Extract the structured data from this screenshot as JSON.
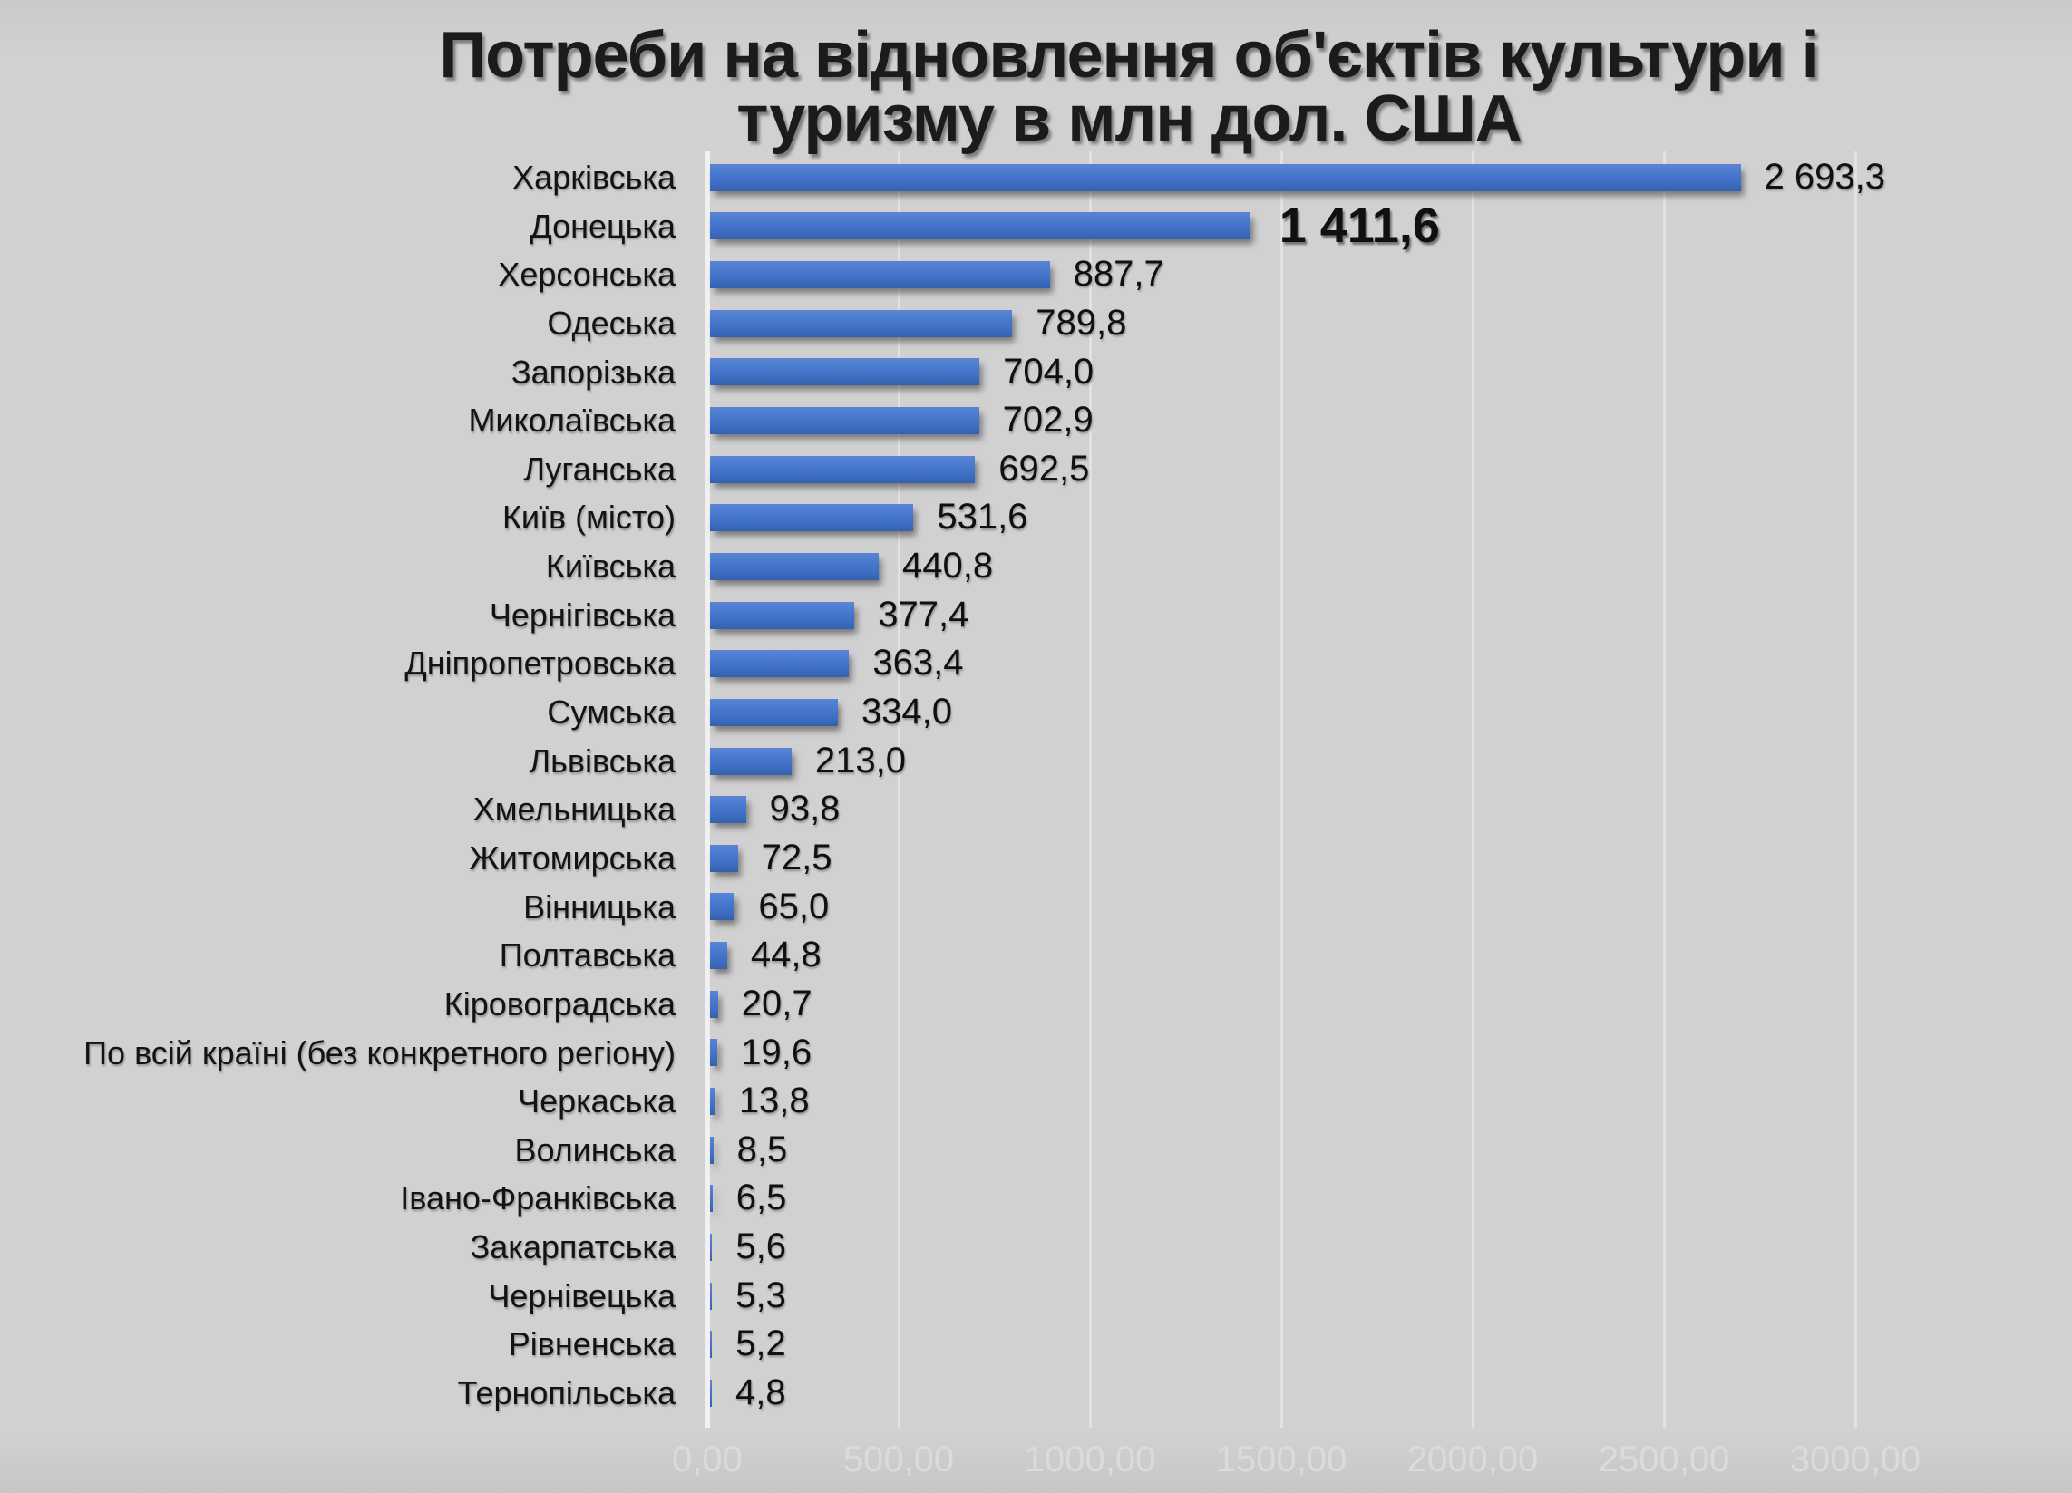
{
  "title": {
    "text": "Потреби на відновлення об'єктів культури і туризму в млн дол. США",
    "line1": "Потреби на відновлення об'єктів культури і",
    "line2": "туризму в млн дол. США"
  },
  "chart_data": {
    "type": "bar",
    "orientation": "horizontal",
    "title": "Потреби на відновлення об'єктів культури і туризму в млн дол. США",
    "xlabel": "",
    "ylabel": "",
    "xlim": [
      0,
      3000
    ],
    "grid": true,
    "legend": "none",
    "bar_color": "#4472c4",
    "background_color": "#d1d0d1",
    "tick_label_color": "#dcdbdc",
    "x_ticks": [
      {
        "value": 0,
        "label": "0,00"
      },
      {
        "value": 500,
        "label": "500,00"
      },
      {
        "value": 1000,
        "label": "1000,00"
      },
      {
        "value": 1500,
        "label": "1500,00"
      },
      {
        "value": 2000,
        "label": "2000,00"
      },
      {
        "value": 2500,
        "label": "2500,00"
      },
      {
        "value": 3000,
        "label": "3000,00"
      }
    ],
    "items": [
      {
        "label": "Харківська",
        "value": 2693.3,
        "value_label": "2 693,3",
        "emphasis": false
      },
      {
        "label": "Донецька",
        "value": 1411.6,
        "value_label": "1 411,6",
        "emphasis": true
      },
      {
        "label": "Херсонська",
        "value": 887.7,
        "value_label": "887,7",
        "emphasis": false
      },
      {
        "label": "Одеська",
        "value": 789.8,
        "value_label": "789,8",
        "emphasis": false
      },
      {
        "label": "Запорізька",
        "value": 704.0,
        "value_label": "704,0",
        "emphasis": false
      },
      {
        "label": "Миколаївська",
        "value": 702.9,
        "value_label": "702,9",
        "emphasis": false
      },
      {
        "label": "Луганська",
        "value": 692.5,
        "value_label": "692,5",
        "emphasis": false
      },
      {
        "label": "Київ (місто)",
        "value": 531.6,
        "value_label": "531,6",
        "emphasis": false
      },
      {
        "label": "Київська",
        "value": 440.8,
        "value_label": "440,8",
        "emphasis": false
      },
      {
        "label": "Чернігівська",
        "value": 377.4,
        "value_label": "377,4",
        "emphasis": false
      },
      {
        "label": "Дніпропетровська",
        "value": 363.4,
        "value_label": "363,4",
        "emphasis": false
      },
      {
        "label": "Сумська",
        "value": 334.0,
        "value_label": "334,0",
        "emphasis": false
      },
      {
        "label": "Львівська",
        "value": 213.0,
        "value_label": "213,0",
        "emphasis": false
      },
      {
        "label": "Хмельницька",
        "value": 93.8,
        "value_label": "93,8",
        "emphasis": false
      },
      {
        "label": "Житомирська",
        "value": 72.5,
        "value_label": "72,5",
        "emphasis": false
      },
      {
        "label": "Вінницька",
        "value": 65.0,
        "value_label": "65,0",
        "emphasis": false
      },
      {
        "label": "Полтавська",
        "value": 44.8,
        "value_label": "44,8",
        "emphasis": false
      },
      {
        "label": "Кіровоградська",
        "value": 20.7,
        "value_label": "20,7",
        "emphasis": false
      },
      {
        "label": "По всій країні (без конкретного регіону)",
        "value": 19.6,
        "value_label": "19,6",
        "emphasis": false
      },
      {
        "label": "Черкаська",
        "value": 13.8,
        "value_label": "13,8",
        "emphasis": false
      },
      {
        "label": "Волинська",
        "value": 8.5,
        "value_label": "8,5",
        "emphasis": false
      },
      {
        "label": "Івано-Франківська",
        "value": 6.5,
        "value_label": "6,5",
        "emphasis": false
      },
      {
        "label": "Закарпатська",
        "value": 5.6,
        "value_label": "5,6",
        "emphasis": false
      },
      {
        "label": "Чернівецька",
        "value": 5.3,
        "value_label": "5,3",
        "emphasis": false
      },
      {
        "label": "Рівненська",
        "value": 5.2,
        "value_label": "5,2",
        "emphasis": false
      },
      {
        "label": "Тернопільська",
        "value": 4.8,
        "value_label": "4,8",
        "emphasis": false
      }
    ]
  }
}
